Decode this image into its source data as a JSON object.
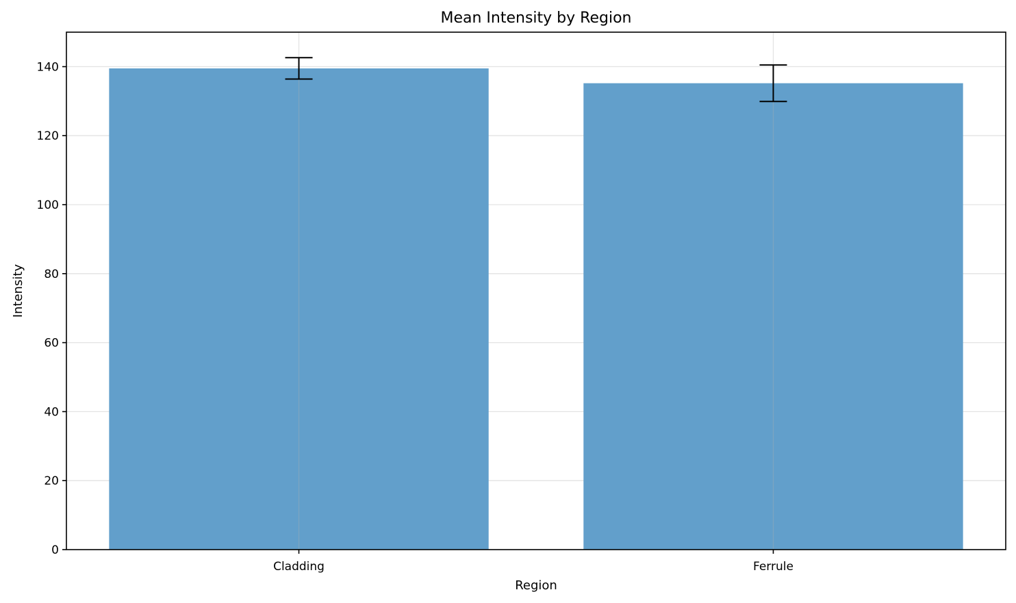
{
  "chart_data": {
    "type": "bar",
    "title": "Mean Intensity by Region",
    "xlabel": "Region",
    "ylabel": "Intensity",
    "categories": [
      "Cladding",
      "Ferrule"
    ],
    "values": [
      139.5,
      135.2
    ],
    "errors": [
      3.1,
      5.3
    ],
    "ylim": [
      0,
      150
    ],
    "yticks": [
      0,
      20,
      40,
      60,
      80,
      100,
      120,
      140
    ],
    "grid": true,
    "bar_color": "#629fcb",
    "error_color": "#000000"
  }
}
